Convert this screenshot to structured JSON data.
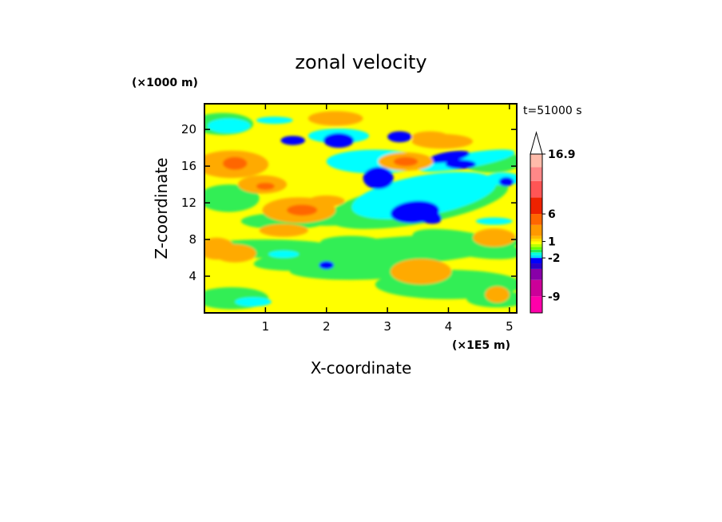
{
  "chart_data": {
    "type": "heatmap",
    "title": "zonal velocity",
    "xlabel": "X-coordinate",
    "ylabel": "Z-coordinate",
    "x_unit_label": "(×1E5 m)",
    "y_unit_label": "(×1000 m)",
    "time_label": "t=51000 s",
    "xlim": [
      0,
      5.12
    ],
    "ylim": [
      0,
      22.8
    ],
    "x_ticks": [
      1,
      2,
      3,
      4,
      5
    ],
    "y_ticks": [
      4,
      8,
      12,
      16,
      20
    ],
    "colorbar": {
      "labels": [
        "16.9",
        "6",
        "1",
        "-2",
        "-9"
      ],
      "levels": [
        -12,
        -9,
        -6,
        -4,
        -3,
        -2,
        -1.5,
        -1,
        -0.5,
        0,
        0.5,
        1,
        1.5,
        2,
        4,
        6,
        9,
        12,
        14.5,
        16.9
      ],
      "colors": [
        "#ff00aa",
        "#cc0099",
        "#8800a8",
        "#2a00cc",
        "#0000ff",
        "#00ddff",
        "#00ffdd",
        "#22ee55",
        "#66ff00",
        "#bbff00",
        "#ffff00",
        "#ffdd00",
        "#ffbb00",
        "#ff9900",
        "#ff6600",
        "#ee2200",
        "#ff5555",
        "#ff8888",
        "#ffbbaa"
      ],
      "extend": "max"
    },
    "field_colors": {
      "yellow": "#ffff00",
      "green": "#33ee55",
      "cyan": "#00ffff",
      "blue": "#0000ff",
      "orange": "#ffaa00",
      "darkorange": "#ff6600",
      "light_orange": "#ffcc33"
    }
  }
}
